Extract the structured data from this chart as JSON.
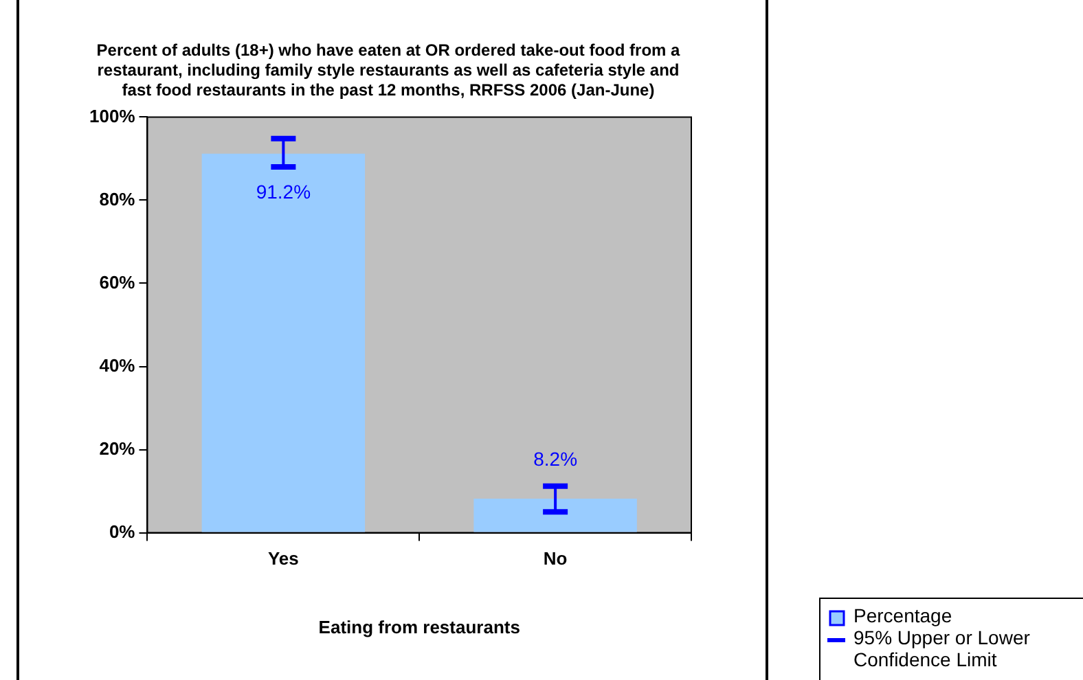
{
  "chart_data": {
    "type": "bar",
    "title": "Percent of adults (18+) who have eaten at OR ordered take-out food from a restaurant, including family style restaurants as well as cafeteria style and fast food restaurants in the past 12 months, RRFSS 2006 (Jan-June)",
    "xlabel": "Eating from restaurants",
    "categories": [
      "Yes",
      "No"
    ],
    "series": [
      {
        "name": "Percentage",
        "color": "#99ccff",
        "values": [
          91.2,
          8.2
        ],
        "errors": [
          [
            88.0,
            94.8
          ],
          [
            5.0,
            11.2
          ]
        ],
        "value_labels": [
          "91.2%",
          "8.2%"
        ]
      }
    ],
    "ylim": [
      0,
      100
    ],
    "yticks": [
      {
        "value": 0,
        "label": "0%"
      },
      {
        "value": 20,
        "label": "20%"
      },
      {
        "value": 40,
        "label": "40%"
      },
      {
        "value": 60,
        "label": "60%"
      },
      {
        "value": 80,
        "label": "80%"
      },
      {
        "value": 100,
        "label": "100%"
      }
    ],
    "grid": false,
    "legend": "bottom right",
    "annotations": [
      "95% Upper or Lower Confidence Limit"
    ]
  }
}
